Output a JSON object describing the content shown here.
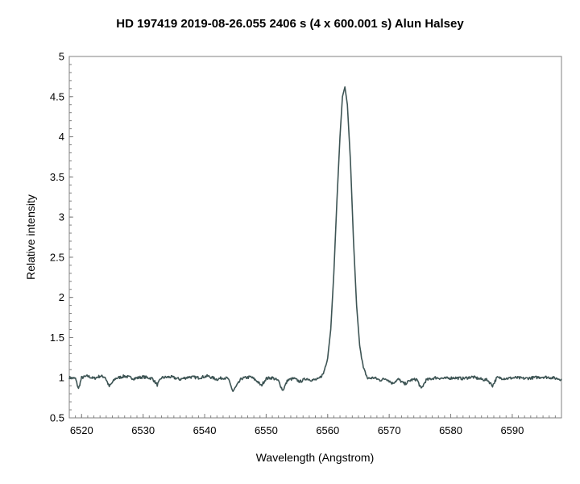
{
  "chart_data": {
    "type": "line",
    "title": "HD 197419   2019-08-26.055   2406 s (4 x 600.001 s)   Alun Halsey",
    "xlabel": "Wavelength (Angstrom)",
    "ylabel": "Relative intensity",
    "xlim": [
      6518,
      6598
    ],
    "ylim": [
      0.5,
      5
    ],
    "xticks": [
      6520,
      6530,
      6540,
      6550,
      6560,
      6570,
      6580,
      6590
    ],
    "xtick_labels": [
      "6520",
      "6530",
      "6540",
      "6550",
      "6560",
      "6570",
      "6580",
      "6590"
    ],
    "yticks": [
      0.5,
      1,
      1.5,
      2,
      2.5,
      3,
      3.5,
      4,
      4.5,
      5
    ],
    "ytick_labels": [
      "0.5",
      "1",
      "1.5",
      "2",
      "2.5",
      "3",
      "3.5",
      "4",
      "4.5",
      "5"
    ],
    "grid": false,
    "line_color": "#3d5454",
    "series": [
      {
        "name": "",
        "x": [
          6518.0,
          6519.0,
          6519.5,
          6520.0,
          6521.0,
          6522.0,
          6523.0,
          6523.8,
          6524.5,
          6525.5,
          6527.0,
          6528.5,
          6530.0,
          6531.5,
          6532.3,
          6533.0,
          6534.5,
          6536.0,
          6537.5,
          6539.0,
          6540.5,
          6542.0,
          6543.0,
          6543.8,
          6544.6,
          6546.0,
          6547.5,
          6548.5,
          6549.2,
          6550.0,
          6551.0,
          6552.0,
          6552.7,
          6553.5,
          6554.5,
          6555.5,
          6556.5,
          6557.5,
          6558.5,
          6559.3,
          6560.0,
          6560.5,
          6561.0,
          6561.5,
          6562.0,
          6562.4,
          6562.8,
          6563.2,
          6563.7,
          6564.2,
          6564.7,
          6565.2,
          6565.8,
          6566.5,
          6567.5,
          6568.5,
          6569.5,
          6570.5,
          6571.5,
          6572.5,
          6573.5,
          6574.5,
          6575.2,
          6576.0,
          6577.5,
          6579.0,
          6580.5,
          6582.0,
          6583.5,
          6585.0,
          6586.0,
          6586.8,
          6587.5,
          6589.0,
          6590.5,
          6592.0,
          6593.5,
          6595.0,
          6596.5,
          6598.0
        ],
        "y": [
          1.0,
          0.99,
          0.86,
          1.0,
          1.02,
          0.99,
          1.02,
          1.01,
          0.89,
          0.99,
          1.02,
          0.99,
          1.01,
          0.99,
          0.91,
          1.0,
          1.01,
          0.98,
          1.01,
          1.0,
          1.02,
          0.98,
          1.0,
          0.99,
          0.83,
          0.99,
          1.01,
          0.96,
          0.9,
          0.99,
          1.0,
          0.96,
          0.84,
          0.97,
          0.99,
          0.95,
          0.99,
          0.97,
          0.98,
          1.05,
          1.25,
          1.6,
          2.3,
          3.2,
          4.0,
          4.5,
          4.62,
          4.4,
          3.7,
          2.7,
          1.9,
          1.4,
          1.12,
          0.99,
          1.0,
          0.97,
          0.99,
          0.93,
          0.98,
          0.92,
          0.97,
          0.98,
          0.86,
          0.97,
          1.0,
          0.99,
          1.0,
          0.99,
          1.01,
          0.98,
          0.97,
          0.9,
          1.0,
          0.99,
          1.0,
          0.99,
          1.0,
          1.01,
          1.0,
          0.98
        ]
      }
    ]
  }
}
